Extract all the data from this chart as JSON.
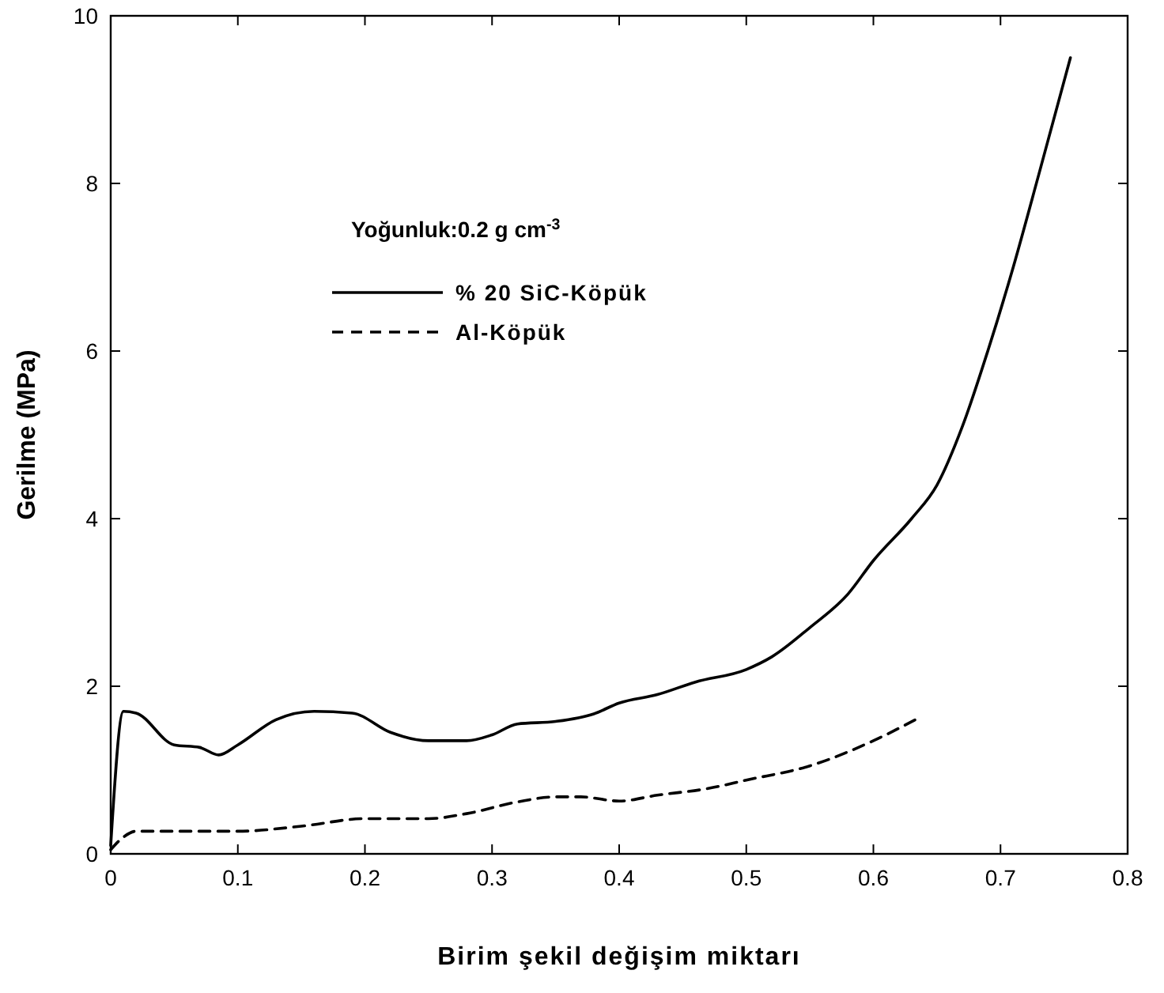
{
  "chart_data": {
    "type": "line",
    "xlabel": "Birim şekil değişim miktarı",
    "ylabel": "Gerilme (MPa)",
    "annotations": [
      "Yoğunluk:0.2 g cm$^{-3}$"
    ],
    "xlim": [
      0,
      0.8
    ],
    "xticks": [
      0,
      0.1,
      0.2,
      0.3,
      0.4,
      0.5,
      0.6,
      0.7,
      0.8
    ],
    "ylim": [
      0,
      10
    ],
    "yticks": [
      0,
      2,
      4,
      6,
      8,
      10
    ],
    "grid": false,
    "legend": "top left",
    "series": [
      {
        "name": "% 20 SiC-Köpük",
        "color": "#000000",
        "line_style": "solid",
        "x": [
          0,
          0.01,
          0.02,
          0.05,
          0.07,
          0.085,
          0.1,
          0.13,
          0.16,
          0.19,
          0.22,
          0.25,
          0.28,
          0.3,
          0.32,
          0.35,
          0.38,
          0.4,
          0.43,
          0.46,
          0.5,
          0.52,
          0.55,
          0.58,
          0.6,
          0.63,
          0.65,
          0.67,
          0.69,
          0.71,
          0.73,
          0.755
        ],
        "values": [
          0.1,
          1.7,
          1.68,
          1.3,
          1.27,
          1.18,
          1.3,
          1.6,
          1.7,
          1.68,
          1.45,
          1.35,
          1.35,
          1.42,
          1.55,
          1.58,
          1.67,
          1.8,
          1.9,
          2.05,
          2.2,
          2.35,
          2.7,
          3.1,
          3.5,
          4.0,
          4.4,
          5.1,
          6.0,
          7.0,
          8.1,
          9.5
        ]
      },
      {
        "name": "Al-Köpük",
        "color": "#000000",
        "line_style": "dashed",
        "x": [
          0,
          0.01,
          0.02,
          0.05,
          0.1,
          0.15,
          0.2,
          0.25,
          0.28,
          0.32,
          0.35,
          0.37,
          0.4,
          0.43,
          0.47,
          0.5,
          0.55,
          0.6,
          0.633
        ],
        "values": [
          0.05,
          0.2,
          0.27,
          0.27,
          0.27,
          0.33,
          0.42,
          0.42,
          0.48,
          0.62,
          0.68,
          0.68,
          0.63,
          0.7,
          0.78,
          0.88,
          1.05,
          1.35,
          1.6
        ]
      }
    ]
  }
}
